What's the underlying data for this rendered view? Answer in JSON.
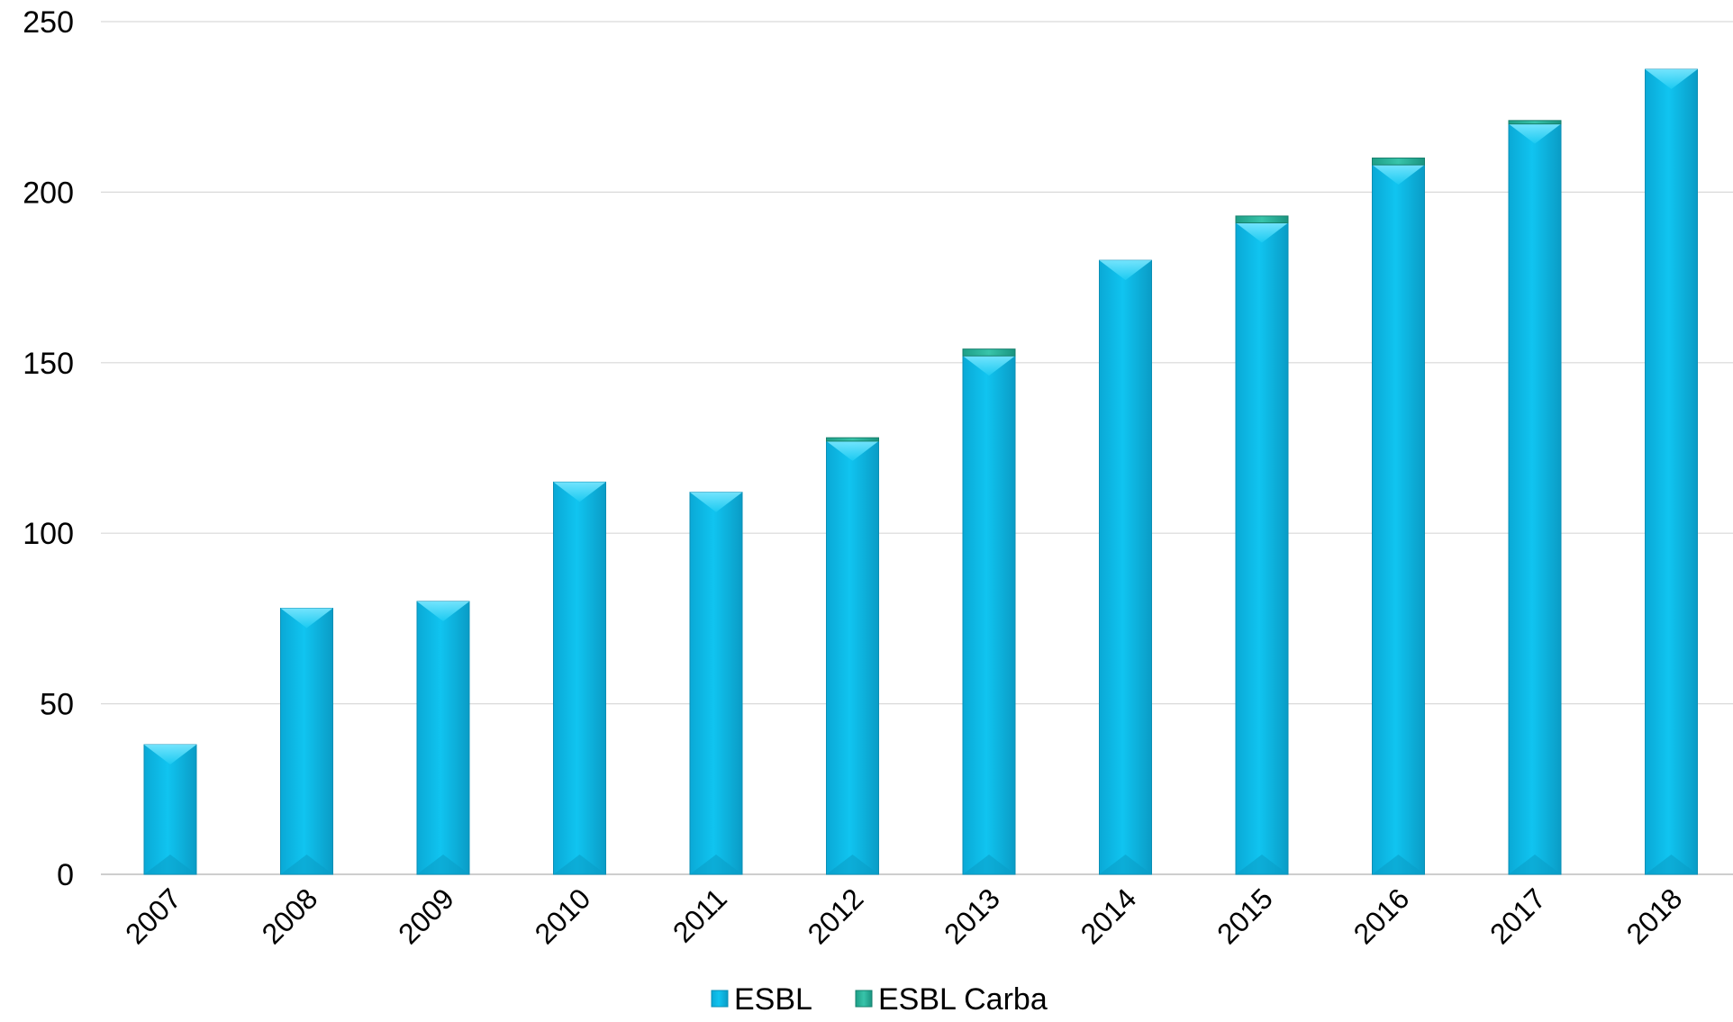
{
  "chart_data": {
    "type": "bar",
    "stacked": true,
    "categories": [
      "2007",
      "2008",
      "2009",
      "2010",
      "2011",
      "2012",
      "2013",
      "2014",
      "2015",
      "2016",
      "2017",
      "2018"
    ],
    "series": [
      {
        "name": "ESBL",
        "color": "#0fc3ef",
        "values": [
          38,
          78,
          80,
          115,
          112,
          127,
          152,
          180,
          191,
          208,
          220,
          236
        ]
      },
      {
        "name": "ESBL Carba",
        "color": "#2fb79e",
        "values": [
          0,
          0,
          0,
          0,
          0,
          1,
          2,
          0,
          2,
          2,
          1,
          0
        ]
      }
    ],
    "y_ticks": [
      "0",
      "50",
      "100",
      "150",
      "200",
      "250"
    ],
    "ylim": [
      0,
      250
    ],
    "grid": true,
    "legend_position": "bottom"
  }
}
